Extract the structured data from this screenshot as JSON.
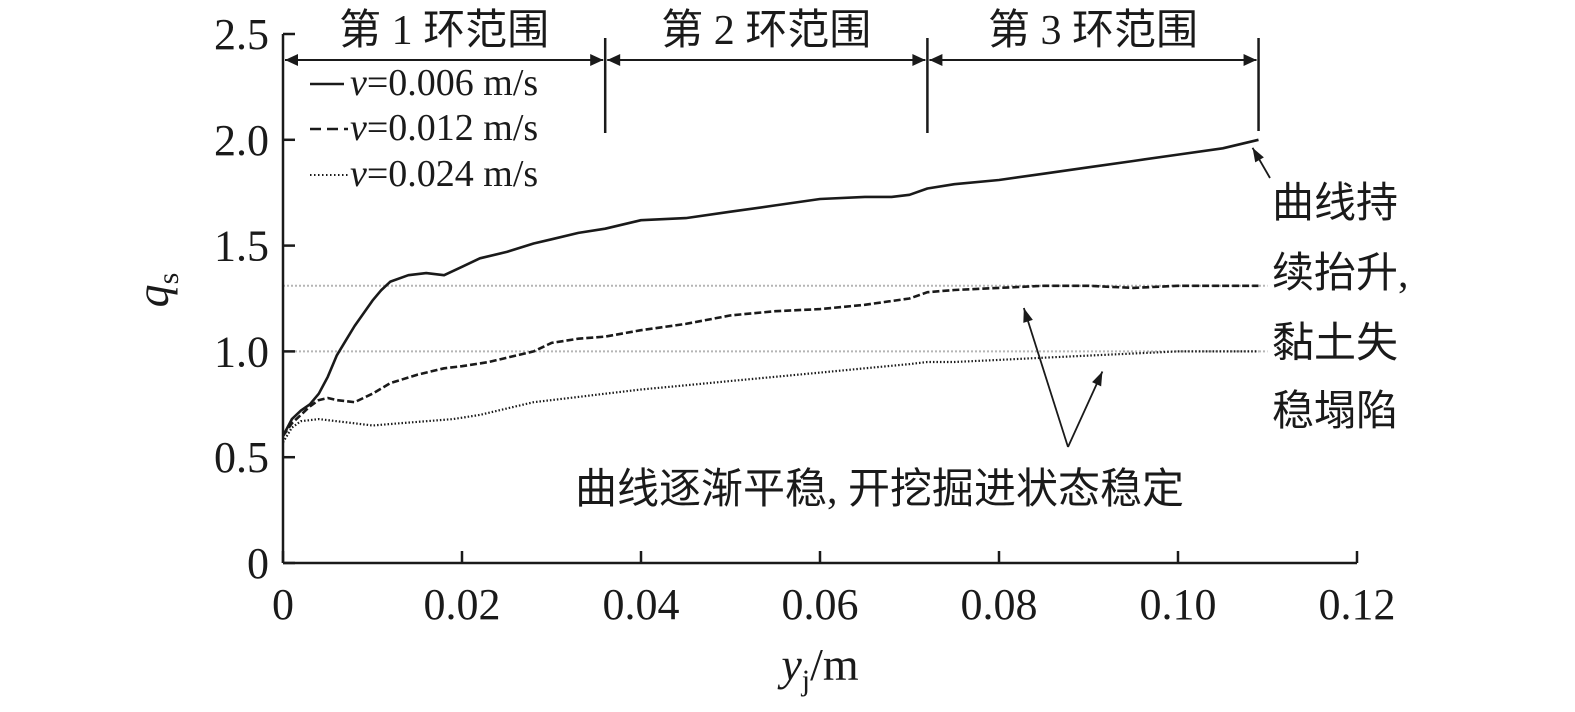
{
  "chart_data": {
    "type": "line",
    "title": "",
    "xlabel": {
      "main": "y",
      "sub": "j",
      "unit": "/m"
    },
    "ylabel": {
      "main": "q",
      "sub": "s"
    },
    "xlim": [
      0,
      0.12
    ],
    "ylim": [
      0,
      2.5
    ],
    "xticks": [
      "0",
      "0.02",
      "0.04",
      "0.06",
      "0.08",
      "0.10",
      "0.12"
    ],
    "xtick_values": [
      0,
      0.02,
      0.04,
      0.06,
      0.08,
      0.1,
      0.12
    ],
    "yticks": [
      "0",
      "0.5",
      "1.0",
      "1.5",
      "2.0",
      "2.5"
    ],
    "ytick_values": [
      0,
      0.5,
      1.0,
      1.5,
      2.0,
      2.5
    ],
    "grid": false,
    "legend_position": "top-left",
    "series": [
      {
        "name": "v=0.006 m/s",
        "style": "solid",
        "x": [
          0,
          0.001,
          0.002,
          0.003,
          0.004,
          0.005,
          0.006,
          0.007,
          0.008,
          0.009,
          0.01,
          0.011,
          0.012,
          0.014,
          0.016,
          0.018,
          0.02,
          0.022,
          0.025,
          0.028,
          0.03,
          0.033,
          0.036,
          0.04,
          0.045,
          0.05,
          0.055,
          0.06,
          0.065,
          0.068,
          0.07,
          0.072,
          0.075,
          0.08,
          0.085,
          0.09,
          0.095,
          0.1,
          0.105,
          0.109
        ],
        "y": [
          0.6,
          0.68,
          0.72,
          0.75,
          0.8,
          0.88,
          0.98,
          1.05,
          1.12,
          1.18,
          1.24,
          1.29,
          1.33,
          1.36,
          1.37,
          1.36,
          1.4,
          1.44,
          1.47,
          1.51,
          1.53,
          1.56,
          1.58,
          1.62,
          1.63,
          1.66,
          1.69,
          1.72,
          1.73,
          1.73,
          1.74,
          1.77,
          1.79,
          1.81,
          1.84,
          1.87,
          1.9,
          1.93,
          1.96,
          2.0
        ]
      },
      {
        "name": "v=0.012 m/s",
        "style": "dashed",
        "x": [
          0,
          0.001,
          0.002,
          0.003,
          0.004,
          0.005,
          0.006,
          0.008,
          0.01,
          0.012,
          0.015,
          0.018,
          0.02,
          0.023,
          0.026,
          0.028,
          0.03,
          0.033,
          0.036,
          0.04,
          0.045,
          0.05,
          0.055,
          0.06,
          0.065,
          0.07,
          0.072,
          0.075,
          0.08,
          0.085,
          0.09,
          0.095,
          0.1,
          0.105,
          0.109
        ],
        "y": [
          0.6,
          0.66,
          0.7,
          0.74,
          0.77,
          0.78,
          0.77,
          0.76,
          0.8,
          0.85,
          0.89,
          0.92,
          0.93,
          0.95,
          0.98,
          1.0,
          1.04,
          1.06,
          1.07,
          1.1,
          1.13,
          1.17,
          1.19,
          1.2,
          1.22,
          1.25,
          1.28,
          1.29,
          1.3,
          1.31,
          1.31,
          1.3,
          1.31,
          1.31,
          1.31
        ]
      },
      {
        "name": "v=0.024 m/s",
        "style": "dotted",
        "x": [
          0,
          0.001,
          0.002,
          0.004,
          0.006,
          0.008,
          0.01,
          0.013,
          0.016,
          0.019,
          0.022,
          0.025,
          0.028,
          0.032,
          0.036,
          0.04,
          0.045,
          0.05,
          0.055,
          0.06,
          0.065,
          0.07,
          0.072,
          0.075,
          0.08,
          0.085,
          0.09,
          0.095,
          0.1,
          0.105,
          0.109
        ],
        "y": [
          0.57,
          0.64,
          0.67,
          0.68,
          0.67,
          0.66,
          0.65,
          0.66,
          0.67,
          0.68,
          0.7,
          0.73,
          0.76,
          0.78,
          0.8,
          0.82,
          0.84,
          0.86,
          0.88,
          0.9,
          0.92,
          0.94,
          0.95,
          0.95,
          0.96,
          0.97,
          0.98,
          0.99,
          1.0,
          1.0,
          1.0
        ]
      }
    ],
    "reference_lines": [
      1.31,
      1.0
    ],
    "ranges": [
      {
        "label": "第 1 环范围",
        "start": 0,
        "end": 0.036
      },
      {
        "label": "第 2 环范围",
        "start": 0.036,
        "end": 0.072
      },
      {
        "label": "第 3 环范围",
        "start": 0.072,
        "end": 0.109
      }
    ],
    "annotations": [
      {
        "lines": [
          "曲线持",
          "续抬升,",
          "黏土失",
          "稳塌陷"
        ],
        "target": {
          "x": 0.109,
          "y": 2.0
        }
      },
      {
        "lines": [
          "曲线逐渐平稳, 开挖掘进状态稳定"
        ],
        "targets": [
          {
            "x": 0.083,
            "y": 1.29
          },
          {
            "x": 0.092,
            "y": 0.99
          }
        ]
      }
    ]
  }
}
